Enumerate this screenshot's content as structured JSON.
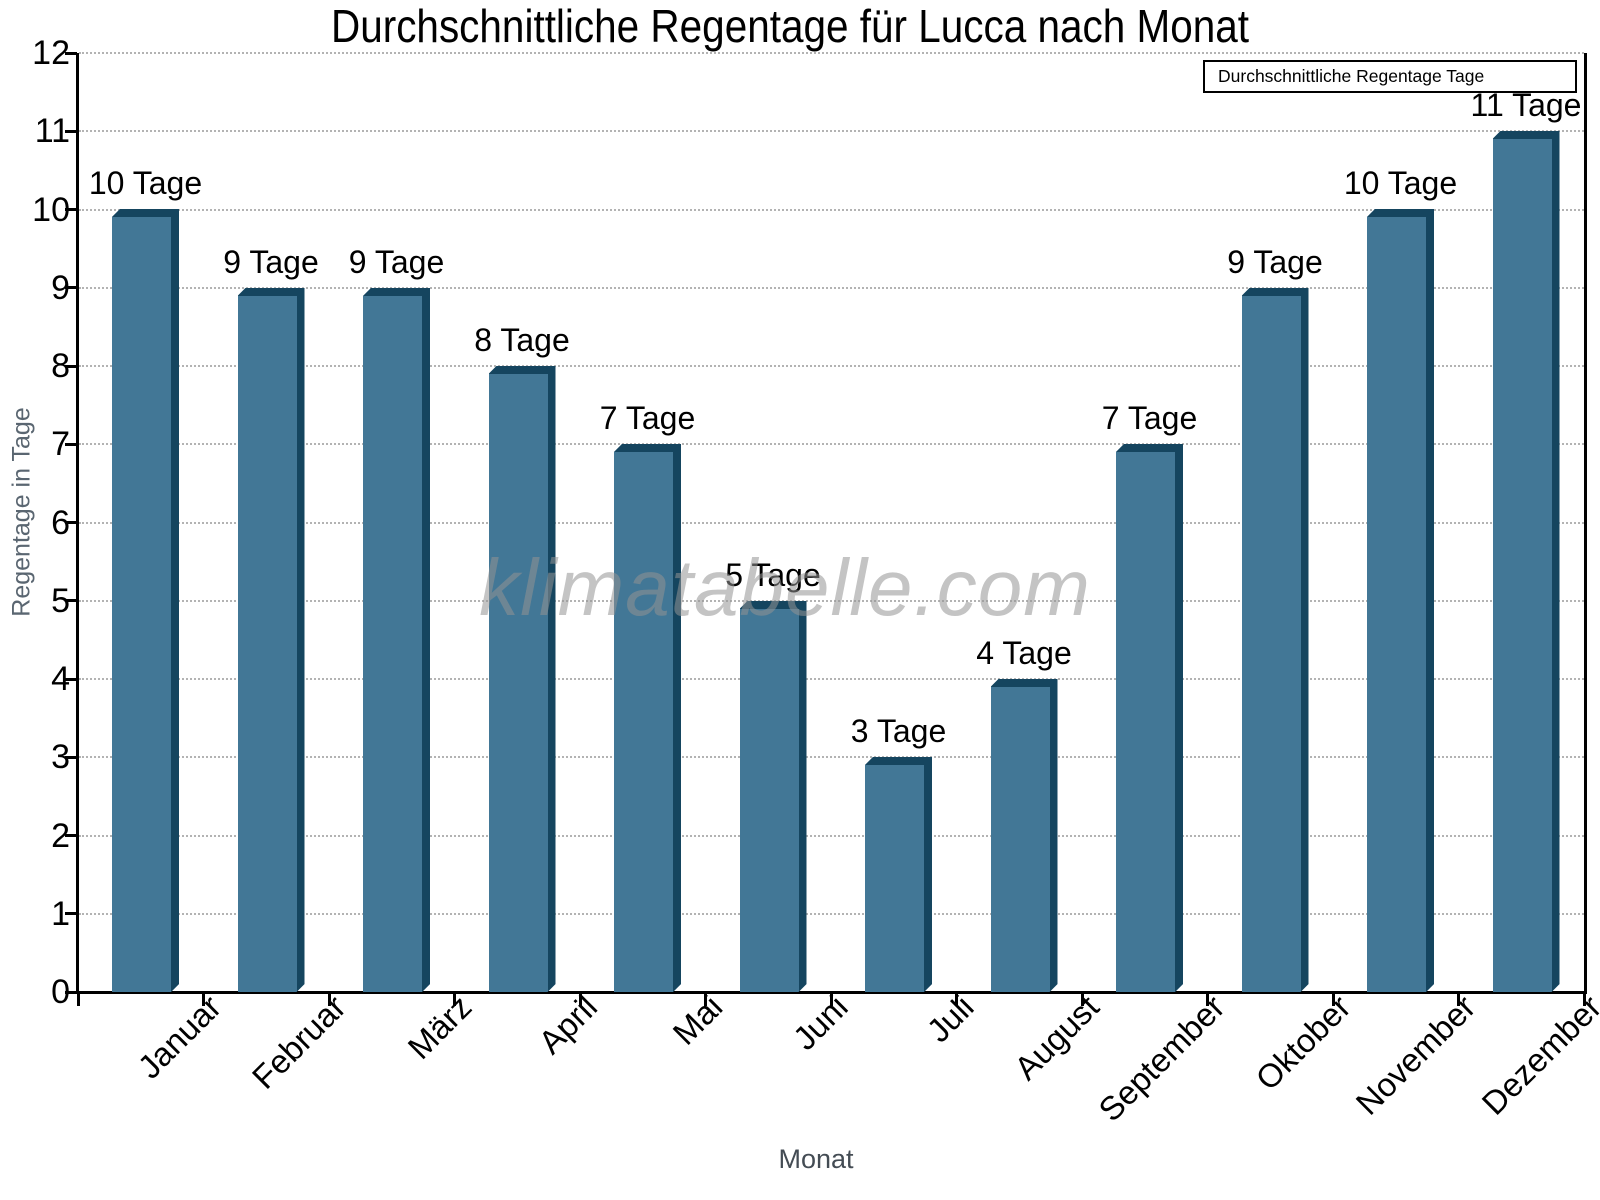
{
  "chart_data": {
    "type": "bar",
    "title": "Durchschnittliche Regentage für Lucca nach Monat",
    "xlabel": "Monat",
    "ylabel": "Regentage in Tage",
    "categories": [
      "Januar",
      "Februar",
      "März",
      "April",
      "Mai",
      "Juni",
      "Juli",
      "August",
      "September",
      "Oktober",
      "November",
      "Dezember"
    ],
    "values": [
      10,
      9,
      9,
      8,
      7,
      5,
      3,
      4,
      7,
      9,
      10,
      11
    ],
    "value_labels": [
      "10 Tage",
      "9 Tage",
      "9 Tage",
      "8 Tage",
      "7 Tage",
      "5 Tage",
      "3 Tage",
      "4 Tage",
      "7 Tage",
      "9 Tage",
      "10 Tage",
      "11 Tage"
    ],
    "unit": "Tage",
    "ylim": [
      0,
      12
    ],
    "ytick_step": 1,
    "grid": "horizontal-dotted",
    "legend_label": "Durchschnittliche Regentage Tage",
    "legend_position": "top-right",
    "watermark": "klimatabelle.com",
    "colors": {
      "bar_fill": "#427796",
      "bar_edge": "#15455F",
      "grid": "#B3B3B3",
      "axis": "#000000",
      "ylabel_text": "#5A6671",
      "xlabel_text": "#444C54",
      "watermark_text": "#949494"
    }
  }
}
